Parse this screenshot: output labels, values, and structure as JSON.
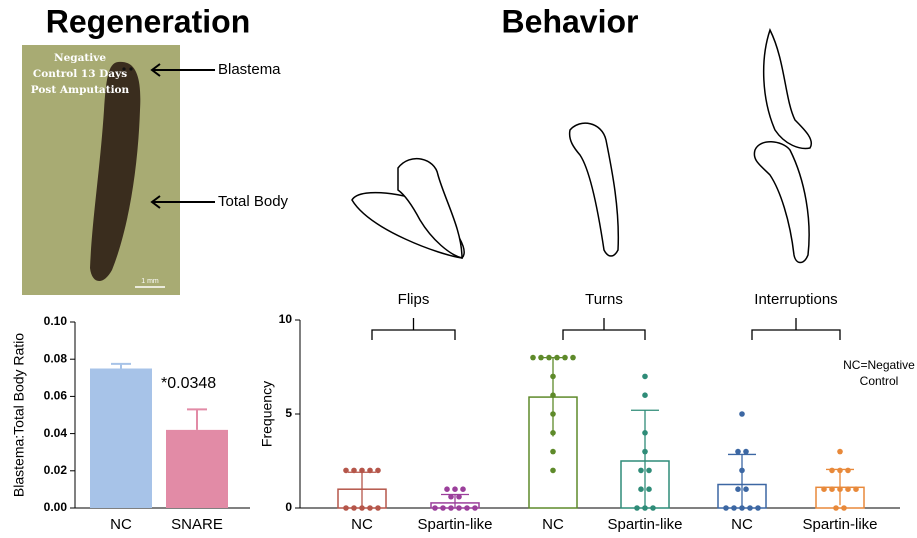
{
  "panels": {
    "regeneration_title": "Regeneration",
    "behavior_title": "Behavior",
    "photo_caption": "Negative Control 13 Days Post Amputation",
    "blastema_label": "Blastema",
    "total_body_label": "Total Body",
    "scale_label": "1 mm"
  },
  "chart_data": [
    {
      "type": "bar",
      "categories": [
        "NC",
        "SNARE"
      ],
      "values": [
        0.075,
        0.042
      ],
      "errors": [
        0.0025,
        0.011
      ],
      "colors": [
        "#a7c3e8",
        "#e28ba6"
      ],
      "y_label": "Blastema:Total Body Ratio",
      "annotation": "*0.0348",
      "ylim": [
        0,
        0.1
      ],
      "yticks": [
        {
          "value": 0,
          "label": "0.00"
        },
        {
          "value": 0.02,
          "label": "0.02"
        },
        {
          "value": 0.04,
          "label": "0.04"
        },
        {
          "value": 0.06,
          "label": "0.06"
        },
        {
          "value": 0.08,
          "label": "0.08"
        },
        {
          "value": 0.1,
          "label": "0.10"
        }
      ]
    },
    {
      "type": "dotbar",
      "categories": [
        "NC",
        "Spartin-like",
        "NC",
        "Spartin-like",
        "NC",
        "Spartin-like"
      ],
      "groups": [
        "Flips",
        "Turns",
        "Interruptions"
      ],
      "values": [
        1.0,
        0.27,
        5.9,
        2.5,
        1.25,
        1.1
      ],
      "errors": [
        0.9,
        0.45,
        2.1,
        2.7,
        1.6,
        0.95
      ],
      "points": [
        [
          2,
          2,
          2,
          2,
          2,
          0,
          0,
          0,
          0,
          0
        ],
        [
          1,
          1,
          1,
          0.6,
          0.6,
          0,
          0,
          0,
          0,
          0,
          0
        ],
        [
          8,
          8,
          8,
          8,
          8,
          8,
          7,
          6,
          5,
          4,
          3,
          2
        ],
        [
          7,
          6,
          4,
          3,
          2,
          2,
          1,
          1,
          0,
          0,
          0
        ],
        [
          5,
          3,
          3,
          2,
          1,
          1,
          0,
          0,
          0,
          0,
          0
        ],
        [
          3,
          2,
          2,
          2,
          1,
          1,
          1,
          1,
          1,
          0,
          0
        ]
      ],
      "colors": [
        "#b5564a",
        "#9b3f9b",
        "#5e8a2a",
        "#2f8c78",
        "#3c67a3",
        "#e8893a"
      ],
      "y_label": "Frequency",
      "note": "NC=Negative Control",
      "ylim": [
        0,
        10
      ],
      "yticks": [
        0,
        5,
        10
      ]
    }
  ]
}
